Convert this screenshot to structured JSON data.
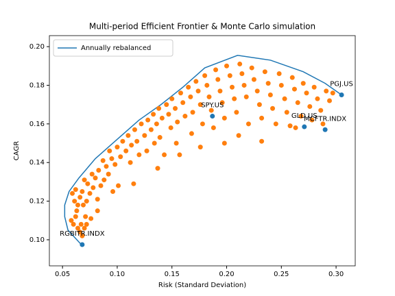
{
  "chart_data": {
    "type": "scatter",
    "title": "Multi-period Efficient Frontier & Monte Carlo simulation",
    "xlabel": "Risk (Standard Deviation)",
    "ylabel": "CAGR",
    "xlim": [
      0.038,
      0.3175
    ],
    "ylim": [
      0.0865,
      0.2057
    ],
    "xticks": [
      0.05,
      {
        "value": 0.1,
        "label": "0.10"
      },
      0.15,
      {
        "value": 0.2,
        "label": "0.20"
      },
      0.25,
      {
        "value": 0.3,
        "label": "0.30"
      }
    ],
    "yticks": [
      {
        "value": 0.1,
        "label": "0.10"
      },
      0.12,
      0.14,
      0.16,
      0.18,
      {
        "value": 0.2,
        "label": "0.20"
      }
    ],
    "legend": "upper left",
    "series": [
      {
        "name": "Annually rebalanced",
        "kind": "line",
        "color": "#1f77b4",
        "x": [
          0.068,
          0.055,
          0.052,
          0.052,
          0.056,
          0.065,
          0.08,
          0.1,
          0.12,
          0.14,
          0.16,
          0.18,
          0.21,
          0.24,
          0.27,
          0.29,
          0.305
        ],
        "y": [
          0.097,
          0.105,
          0.112,
          0.118,
          0.125,
          0.132,
          0.142,
          0.152,
          0.162,
          0.17,
          0.179,
          0.189,
          0.1955,
          0.193,
          0.187,
          0.181,
          0.175
        ]
      },
      {
        "kind": "scatter",
        "color": "#ff7f0e",
        "x": [
          0.058,
          0.06,
          0.062,
          0.064,
          0.066,
          0.068,
          0.067,
          0.063,
          0.061,
          0.059,
          0.062,
          0.066,
          0.069,
          0.071,
          0.07,
          0.064,
          0.068,
          0.072,
          0.075,
          0.073,
          0.07,
          0.078,
          0.08,
          0.077,
          0.082,
          0.085,
          0.083,
          0.088,
          0.09,
          0.087,
          0.092,
          0.095,
          0.093,
          0.098,
          0.1,
          0.103,
          0.105,
          0.101,
          0.108,
          0.11,
          0.113,
          0.112,
          0.116,
          0.118,
          0.12,
          0.122,
          0.125,
          0.127,
          0.128,
          0.131,
          0.134,
          0.133,
          0.136,
          0.139,
          0.138,
          0.141,
          0.143,
          0.145,
          0.147,
          0.149,
          0.15,
          0.153,
          0.155,
          0.154,
          0.158,
          0.16,
          0.162,
          0.165,
          0.167,
          0.169,
          0.168,
          0.172,
          0.174,
          0.176,
          0.178,
          0.18,
          0.182,
          0.184,
          0.186,
          0.188,
          0.19,
          0.192,
          0.194,
          0.196,
          0.198,
          0.2,
          0.203,
          0.205,
          0.207,
          0.209,
          0.212,
          0.214,
          0.216,
          0.218,
          0.22,
          0.223,
          0.225,
          0.228,
          0.23,
          0.232,
          0.235,
          0.238,
          0.24,
          0.242,
          0.245,
          0.248,
          0.25,
          0.253,
          0.255,
          0.258,
          0.26,
          0.262,
          0.265,
          0.268,
          0.27,
          0.273,
          0.276,
          0.278,
          0.28,
          0.283,
          0.286,
          0.288,
          0.291,
          0.294,
          0.297,
          0.263,
          0.232,
          0.211,
          0.198,
          0.176,
          0.157,
          0.137,
          0.115,
          0.096,
          0.082,
          0.076,
          0.072
        ],
        "y": [
          0.11,
          0.108,
          0.112,
          0.106,
          0.104,
          0.102,
          0.108,
          0.115,
          0.12,
          0.124,
          0.126,
          0.122,
          0.118,
          0.112,
          0.106,
          0.118,
          0.125,
          0.12,
          0.124,
          0.129,
          0.131,
          0.127,
          0.132,
          0.134,
          0.121,
          0.128,
          0.136,
          0.131,
          0.138,
          0.141,
          0.134,
          0.142,
          0.146,
          0.139,
          0.148,
          0.143,
          0.151,
          0.128,
          0.146,
          0.154,
          0.149,
          0.14,
          0.157,
          0.151,
          0.144,
          0.16,
          0.154,
          0.146,
          0.162,
          0.157,
          0.15,
          0.165,
          0.16,
          0.153,
          0.168,
          0.163,
          0.144,
          0.17,
          0.165,
          0.158,
          0.173,
          0.168,
          0.161,
          0.15,
          0.176,
          0.171,
          0.164,
          0.179,
          0.174,
          0.166,
          0.155,
          0.182,
          0.177,
          0.17,
          0.16,
          0.185,
          0.18,
          0.174,
          0.167,
          0.158,
          0.188,
          0.183,
          0.177,
          0.171,
          0.163,
          0.19,
          0.185,
          0.179,
          0.173,
          0.166,
          0.191,
          0.186,
          0.18,
          0.174,
          0.16,
          0.189,
          0.183,
          0.177,
          0.17,
          0.163,
          0.187,
          0.181,
          0.175,
          0.168,
          0.16,
          0.186,
          0.18,
          0.173,
          0.166,
          0.159,
          0.184,
          0.178,
          0.171,
          0.164,
          0.181,
          0.176,
          0.169,
          0.162,
          0.179,
          0.173,
          0.167,
          0.16,
          0.177,
          0.172,
          0.176,
          0.158,
          0.151,
          0.154,
          0.15,
          0.148,
          0.144,
          0.137,
          0.129,
          0.125,
          0.115,
          0.111,
          0.108
        ]
      },
      {
        "kind": "scatter",
        "color": "#1f77b4",
        "x": [
          0.068,
          0.187,
          0.271,
          0.29,
          0.305
        ],
        "y": [
          0.0975,
          0.164,
          0.1585,
          0.157,
          0.175
        ],
        "labels": [
          "RGBITR.INDX",
          "SPY.US",
          "GLD.US",
          "MCFTR.INDX",
          "PGJ.US"
        ]
      }
    ]
  }
}
